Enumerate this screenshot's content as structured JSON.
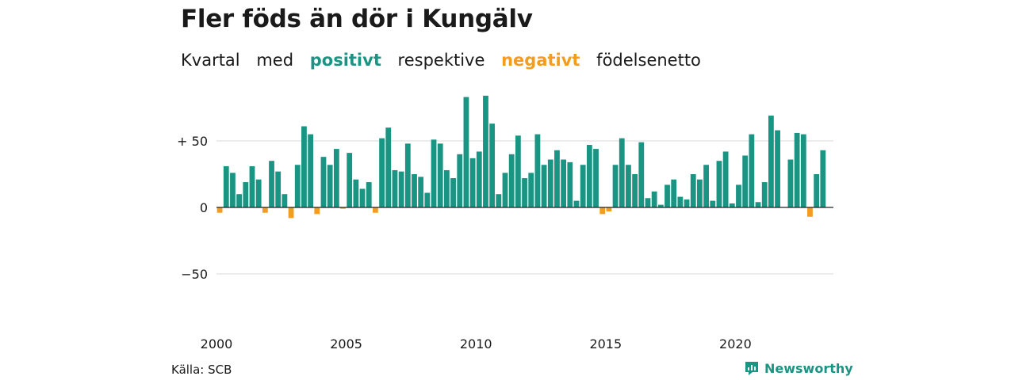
{
  "title": "Fler föds än dör i Kungälv",
  "subtitle": {
    "w1": "Kvartal",
    "w2": "med",
    "positive": "positivt",
    "w3": "respektive",
    "negative": "negativt",
    "w4": "födelsenetto"
  },
  "source": "Källa: SCB",
  "brand": "Newsworthy",
  "colors": {
    "positive": "#1a9583",
    "negative": "#f39c1e",
    "grid": "#d9d9d9",
    "zero_line": "#222222",
    "brand": "#1a9583"
  },
  "chart_data": {
    "type": "bar",
    "title": "Fler föds än dör i Kungälv",
    "xlabel": "",
    "ylabel": "",
    "ylim": [
      -80,
      90
    ],
    "yticks": [
      {
        "value": 50,
        "label": "+ 50"
      },
      {
        "value": 0,
        "label": "0"
      },
      {
        "value": -50,
        "label": "−50"
      }
    ],
    "xticks": [
      {
        "year": 2000,
        "label": "2000"
      },
      {
        "year": 2005,
        "label": "2005"
      },
      {
        "year": 2010,
        "label": "2010"
      },
      {
        "year": 2015,
        "label": "2015"
      },
      {
        "year": 2020,
        "label": "2020"
      }
    ],
    "start": "2000Q1",
    "grid": "horizontal",
    "series": [
      {
        "values": [
          -4,
          31,
          26,
          10,
          19,
          31,
          21,
          -4,
          35,
          27,
          10,
          -8,
          32,
          61,
          55,
          -5,
          38,
          32,
          44,
          -1,
          41,
          21,
          14,
          19,
          -4,
          52,
          60,
          28,
          27,
          48,
          25,
          23,
          11,
          51,
          48,
          28,
          22,
          40,
          83,
          37,
          42,
          84,
          63,
          10,
          26,
          40,
          54,
          22,
          26,
          55,
          32,
          36,
          43,
          36,
          34,
          5,
          32,
          47,
          44,
          -5,
          -3,
          32,
          52,
          32,
          25,
          49,
          7,
          12,
          2,
          17,
          21,
          8,
          6,
          25,
          21,
          32,
          5,
          35,
          42,
          3,
          17,
          39,
          55,
          4,
          19,
          69,
          58,
          0,
          36,
          56,
          55,
          -7,
          25,
          43
        ]
      }
    ]
  }
}
